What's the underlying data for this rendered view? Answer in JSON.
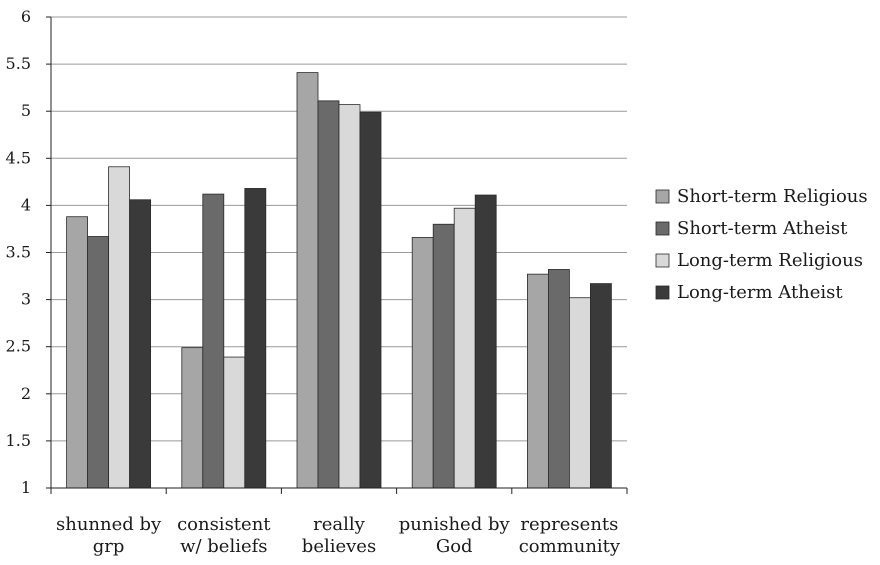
{
  "chart_data": {
    "type": "bar",
    "categories": [
      [
        "shunned by",
        "grp"
      ],
      [
        "consistent",
        "w/ beliefs"
      ],
      [
        "really",
        "believes"
      ],
      [
        "punished by",
        "God"
      ],
      [
        "represents",
        "community"
      ]
    ],
    "series": [
      {
        "name": "Short-term Religious",
        "color": "#a6a6a6",
        "values": [
          3.88,
          2.49,
          5.41,
          3.66,
          3.27
        ]
      },
      {
        "name": "Short-term Atheist",
        "color": "#6a6a6a",
        "values": [
          3.67,
          4.12,
          5.11,
          3.8,
          3.32
        ]
      },
      {
        "name": "Long-term Religious",
        "color": "#d9d9d9",
        "values": [
          4.41,
          2.39,
          5.07,
          3.97,
          3.02
        ]
      },
      {
        "name": "Long-term Atheist",
        "color": "#3a3a3a",
        "values": [
          4.06,
          4.18,
          4.99,
          4.11,
          3.17
        ]
      }
    ],
    "yticks": [
      "1",
      "1.5",
      "2",
      "2.5",
      "3",
      "3.5",
      "4",
      "4.5",
      "5",
      "5.5",
      "6"
    ],
    "ylim": [
      1,
      6
    ],
    "grid": true,
    "legend_position": "right"
  }
}
